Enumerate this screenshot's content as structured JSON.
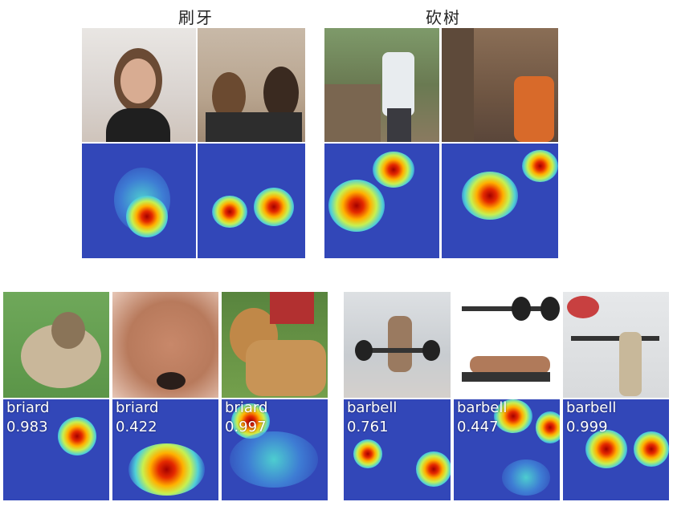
{
  "groups": [
    {
      "title": "刷牙"
    },
    {
      "title": "砍树"
    }
  ],
  "dog_examples": [
    {
      "class_label": "briard",
      "score": "0.983"
    },
    {
      "class_label": "briard",
      "score": "0.422"
    },
    {
      "class_label": "briard",
      "score": "0.997"
    }
  ],
  "barbell_examples": [
    {
      "class_label": "barbell",
      "score": "0.761"
    },
    {
      "class_label": "barbell",
      "score": "0.447"
    },
    {
      "class_label": "barbell",
      "score": "0.999"
    }
  ],
  "colors": {
    "heat_background": "#3247b8",
    "heat_peak": "#a30000",
    "label_text": "#ffffff"
  }
}
